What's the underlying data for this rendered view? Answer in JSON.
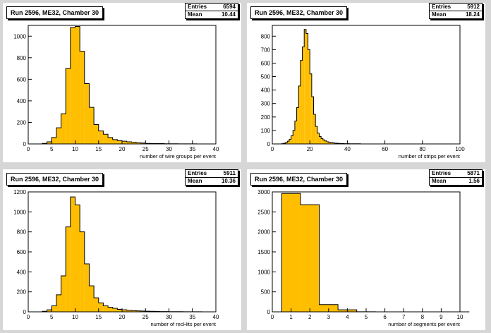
{
  "colors": {
    "fill": "#ffbf00",
    "line": "#000000",
    "pad": "#ffffff",
    "canvas": "#d6d6d6"
  },
  "chart_data": [
    {
      "type": "bar",
      "title": "Run 2596, ME32, Chamber 30",
      "xlabel": "number of wire groups per event",
      "stats": {
        "entries_label": "Entries",
        "entries": "6594",
        "mean_label": "Mean",
        "mean": "10.44"
      },
      "xlim": [
        0,
        40
      ],
      "ylim": [
        0,
        1100
      ],
      "xticks": [
        0,
        5,
        10,
        15,
        20,
        25,
        30,
        35,
        40
      ],
      "yticks": [
        0,
        200,
        400,
        600,
        800,
        1000
      ],
      "bins": {
        "start": 0,
        "width": 1,
        "values": [
          0,
          0,
          0,
          5,
          20,
          60,
          150,
          280,
          700,
          1080,
          1090,
          860,
          560,
          340,
          180,
          120,
          90,
          60,
          40,
          30,
          25,
          20,
          15,
          10,
          8,
          5,
          4,
          3,
          3,
          2,
          2,
          2,
          1,
          1,
          1,
          1,
          0,
          0,
          0,
          0
        ]
      }
    },
    {
      "type": "bar",
      "title": "Run 2596, ME32, Chamber 30",
      "xlabel": "number of strips per event",
      "stats": {
        "entries_label": "Entries",
        "entries": "5912",
        "mean_label": "Mean",
        "mean": "18.24"
      },
      "xlim": [
        0,
        100
      ],
      "ylim": [
        0,
        880
      ],
      "xticks": [
        0,
        20,
        40,
        60,
        80,
        100
      ],
      "yticks": [
        0,
        100,
        200,
        300,
        400,
        500,
        600,
        700,
        800
      ],
      "bins": {
        "start": 0,
        "width": 1,
        "values": [
          0,
          0,
          0,
          0,
          0,
          2,
          5,
          10,
          20,
          35,
          60,
          100,
          170,
          270,
          430,
          620,
          720,
          850,
          820,
          700,
          520,
          350,
          220,
          130,
          80,
          55,
          40,
          30,
          22,
          16,
          12,
          10,
          8,
          6,
          5,
          4,
          3,
          3,
          2,
          2,
          2,
          1,
          1,
          1,
          1,
          1,
          1,
          0,
          0,
          0
        ]
      }
    },
    {
      "type": "bar",
      "title": "Run 2596, ME32, Chamber 30",
      "xlabel": "number of recHits per event",
      "stats": {
        "entries_label": "Entries",
        "entries": "5911",
        "mean_label": "Mean",
        "mean": "10.36"
      },
      "xlim": [
        0,
        40
      ],
      "ylim": [
        0,
        1200
      ],
      "xticks": [
        0,
        5,
        10,
        15,
        20,
        25,
        30,
        35,
        40
      ],
      "yticks": [
        0,
        200,
        400,
        600,
        800,
        1000,
        1200
      ],
      "bins": {
        "start": 0,
        "width": 1,
        "values": [
          0,
          0,
          0,
          5,
          20,
          60,
          170,
          360,
          850,
          1150,
          1070,
          800,
          480,
          260,
          140,
          90,
          60,
          45,
          35,
          25,
          20,
          15,
          12,
          10,
          8,
          6,
          5,
          4,
          3,
          3,
          2,
          2,
          2,
          1,
          1,
          1,
          1,
          0,
          0,
          0
        ]
      }
    },
    {
      "type": "bar",
      "title": "Run 2596, ME32, Chamber 30",
      "xlabel": "number of segments per event",
      "stats": {
        "entries_label": "Entries",
        "entries": "5871",
        "mean_label": "Mean",
        "mean": "1.56"
      },
      "xlim": [
        0,
        10
      ],
      "ylim": [
        0,
        3000
      ],
      "xticks": [
        0,
        1,
        2,
        3,
        4,
        5,
        6,
        7,
        8,
        9,
        10
      ],
      "yticks": [
        0,
        500,
        1000,
        1500,
        2000,
        2500,
        3000
      ],
      "bins": {
        "start": 0.5,
        "width": 1,
        "values": [
          2960,
          2680,
          180,
          50,
          3,
          0,
          0,
          0,
          0,
          0
        ]
      }
    }
  ]
}
